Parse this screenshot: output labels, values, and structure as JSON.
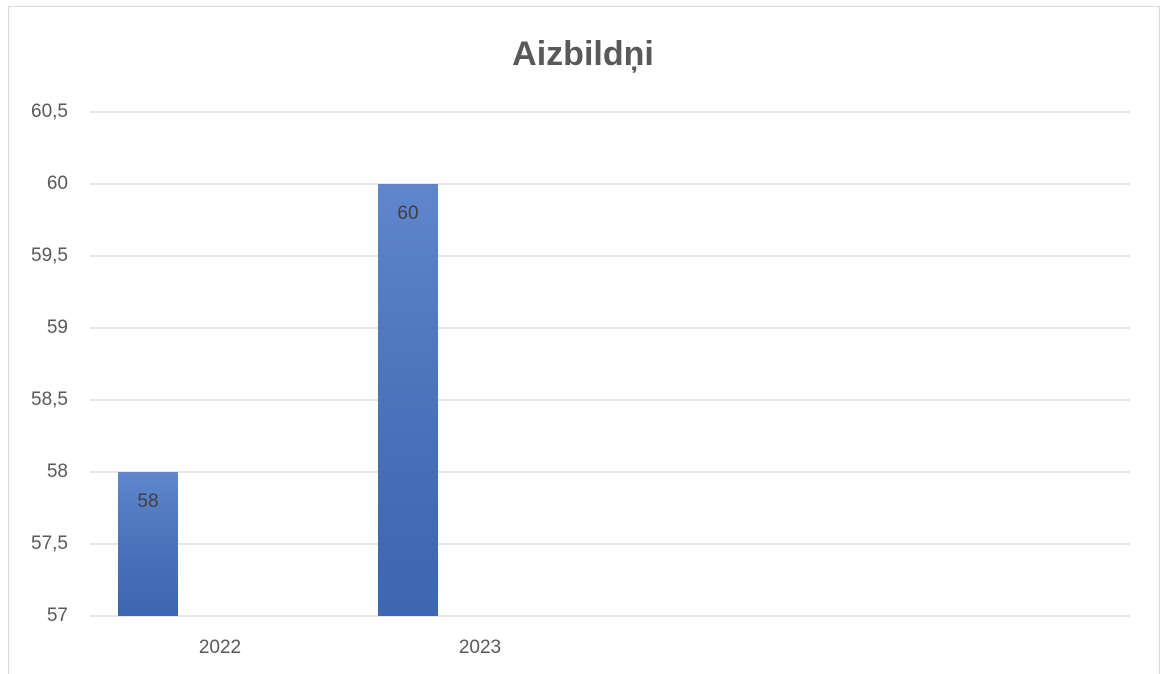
{
  "chart_data": {
    "type": "bar",
    "title": "Aizbildņi",
    "categories": [
      "2022",
      "2023",
      null,
      null
    ],
    "values": [
      58,
      60,
      null,
      null
    ],
    "color": "#4472c4",
    "ylim": [
      57,
      60.5
    ],
    "yticks": [
      57,
      {
        "value": 57.5,
        "label": "57,5"
      },
      58,
      {
        "value": 58.5,
        "label": "58,5"
      },
      59,
      {
        "value": 59.5,
        "label": "59,5"
      },
      60,
      {
        "value": 60.5,
        "label": "60,5"
      }
    ],
    "grid": true
  }
}
